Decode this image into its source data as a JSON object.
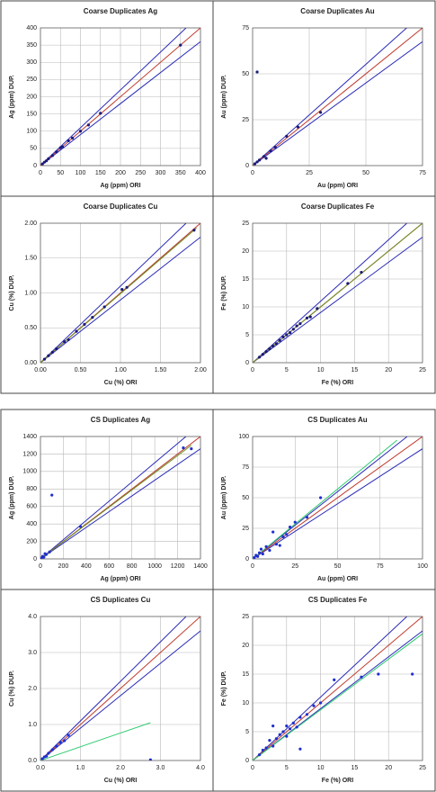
{
  "chart_data": [
    {
      "type": "scatter",
      "title": "Coarse Duplicates Ag",
      "xlabel": "Ag (ppm) ORI",
      "ylabel": "Ag (ppm) DUP.",
      "grid": true,
      "xlim": [
        0,
        400
      ],
      "ylim": [
        0,
        400
      ],
      "xticks": [
        0,
        50,
        100,
        150,
        200,
        250,
        300,
        350,
        400
      ],
      "yticks": [
        0,
        50,
        100,
        150,
        200,
        250,
        300,
        350,
        400
      ],
      "series": [
        {
          "mode": "line",
          "color": "#2a2ab8",
          "x": [
            0,
            364
          ],
          "values": [
            0,
            400
          ]
        },
        {
          "mode": "line",
          "color": "#2a2ab8",
          "x": [
            0,
            400
          ],
          "values": [
            0,
            360
          ]
        },
        {
          "mode": "line",
          "color": "#c0392b",
          "x": [
            0,
            400
          ],
          "values": [
            0,
            400
          ]
        },
        {
          "mode": "markers",
          "color": "#1a1a7a",
          "x": [
            5,
            10,
            15,
            20,
            30,
            40,
            50,
            55,
            70,
            80,
            100,
            120,
            150,
            350
          ],
          "values": [
            5,
            10,
            14,
            20,
            29,
            40,
            52,
            55,
            72,
            80,
            100,
            118,
            152,
            350
          ]
        }
      ]
    },
    {
      "type": "scatter",
      "title": "Coarse Duplicates Au",
      "xlabel": "Au (ppm) ORI",
      "ylabel": "Au (ppm) DUP.",
      "grid": true,
      "xlim": [
        0,
        75
      ],
      "ylim": [
        0,
        75
      ],
      "xticks": [
        0,
        25,
        50,
        75
      ],
      "yticks": [
        0,
        25,
        50,
        75
      ],
      "series": [
        {
          "mode": "line",
          "color": "#2a2ab8",
          "x": [
            0,
            68
          ],
          "values": [
            0,
            75
          ]
        },
        {
          "mode": "line",
          "color": "#2a2ab8",
          "x": [
            0,
            75
          ],
          "values": [
            0,
            67.5
          ]
        },
        {
          "mode": "line",
          "color": "#c0392b",
          "x": [
            0,
            75
          ],
          "values": [
            0,
            75
          ]
        },
        {
          "mode": "markers",
          "color": "#1a1a7a",
          "x": [
            1,
            2,
            2,
            3,
            5,
            6,
            8,
            10,
            15,
            20,
            30
          ],
          "values": [
            1,
            2,
            51,
            3,
            5,
            4,
            8,
            10,
            16,
            21,
            29
          ]
        }
      ]
    },
    {
      "type": "scatter",
      "title": "Coarse Duplicates Cu",
      "xlabel": "Cu (%) ORI",
      "ylabel": "Cu (%) DUP.",
      "grid": true,
      "xlim": [
        0,
        2
      ],
      "ylim": [
        0,
        2
      ],
      "xticks": [
        {
          "value": 0,
          "label": "0.00"
        },
        {
          "value": 0.5,
          "label": "0.50"
        },
        {
          "value": 1,
          "label": "1.00"
        },
        {
          "value": 1.5,
          "label": "1.50"
        },
        {
          "value": 2,
          "label": "2.00"
        }
      ],
      "yticks": [
        {
          "value": 0,
          "label": "0.00"
        },
        {
          "value": 0.5,
          "label": "0.50"
        },
        {
          "value": 1,
          "label": "1.00"
        },
        {
          "value": 1.5,
          "label": "1.50"
        },
        {
          "value": 2,
          "label": "2.00"
        }
      ],
      "series": [
        {
          "mode": "line",
          "color": "#2a2ab8",
          "x": [
            0,
            1.82
          ],
          "values": [
            0,
            2
          ]
        },
        {
          "mode": "line",
          "color": "#2a2ab8",
          "x": [
            0,
            2
          ],
          "values": [
            0,
            1.8
          ]
        },
        {
          "mode": "line",
          "color": "#c0392b",
          "x": [
            0,
            2
          ],
          "values": [
            0,
            2
          ]
        },
        {
          "mode": "line",
          "color": "#6b8e23",
          "x": [
            0,
            1.95
          ],
          "values": [
            0,
            1.93
          ]
        },
        {
          "mode": "markers",
          "color": "#1a1a7a",
          "x": [
            0.05,
            0.1,
            0.15,
            0.2,
            0.3,
            0.35,
            0.45,
            0.55,
            0.65,
            0.8,
            1.02,
            1.08,
            1.92
          ],
          "values": [
            0.05,
            0.1,
            0.15,
            0.2,
            0.3,
            0.33,
            0.45,
            0.55,
            0.65,
            0.8,
            1.05,
            1.08,
            1.9
          ]
        }
      ]
    },
    {
      "type": "scatter",
      "title": "Coarse Duplicates Fe",
      "xlabel": "Fe (%) ORI",
      "ylabel": "Fe (%) DUP.",
      "grid": true,
      "xlim": [
        0,
        25
      ],
      "ylim": [
        0,
        25
      ],
      "xticks": [
        0,
        5,
        10,
        15,
        20,
        25
      ],
      "yticks": [
        0,
        5,
        10,
        15,
        20,
        25
      ],
      "series": [
        {
          "mode": "line",
          "color": "#2a2ab8",
          "x": [
            0,
            22.7
          ],
          "values": [
            0,
            25
          ]
        },
        {
          "mode": "line",
          "color": "#2a2ab8",
          "x": [
            0,
            25
          ],
          "values": [
            0,
            22.5
          ]
        },
        {
          "mode": "line",
          "color": "#c0392b",
          "x": [
            0,
            25
          ],
          "values": [
            0,
            25
          ]
        },
        {
          "mode": "line",
          "color": "#6b8e23",
          "x": [
            0,
            25
          ],
          "values": [
            0,
            25
          ]
        },
        {
          "mode": "markers",
          "color": "#1a1a7a",
          "x": [
            1,
            1.5,
            2,
            2.5,
            3,
            3.5,
            4,
            4.5,
            5,
            5.5,
            6,
            6.5,
            7,
            8,
            8.5,
            9.5,
            14,
            16
          ],
          "values": [
            1,
            1.5,
            2,
            2.5,
            3,
            3.4,
            4,
            4.6,
            5,
            5.4,
            6,
            6.6,
            7,
            8,
            8.2,
            9.7,
            14.2,
            16.2
          ]
        }
      ]
    },
    {
      "type": "scatter",
      "title": "CS Duplicates Ag",
      "xlabel": "Ag (ppm) ORI",
      "ylabel": "Ag (ppm) DUP.",
      "grid": true,
      "xlim": [
        0,
        1400
      ],
      "ylim": [
        0,
        1400
      ],
      "xticks": [
        0,
        200,
        400,
        600,
        800,
        1000,
        1200,
        1400
      ],
      "yticks": [
        0,
        200,
        400,
        600,
        800,
        1000,
        1200,
        1400
      ],
      "series": [
        {
          "mode": "line",
          "color": "#2a2ab8",
          "x": [
            0,
            1273
          ],
          "values": [
            0,
            1400
          ]
        },
        {
          "mode": "line",
          "color": "#2a2ab8",
          "x": [
            0,
            1400
          ],
          "values": [
            0,
            1260
          ]
        },
        {
          "mode": "line",
          "color": "#c0392b",
          "x": [
            0,
            1400
          ],
          "values": [
            0,
            1400
          ]
        },
        {
          "mode": "line",
          "color": "#6b8e23",
          "x": [
            0,
            1320
          ],
          "values": [
            0,
            1300
          ]
        },
        {
          "mode": "markers",
          "color": "#1f2fd0",
          "x": [
            10,
            20,
            30,
            50,
            40,
            80,
            100,
            350,
            1250,
            1320
          ],
          "values": [
            10,
            30,
            20,
            50,
            60,
            80,
            730,
            370,
            1270,
            1260
          ]
        }
      ]
    },
    {
      "type": "scatter",
      "title": "CS Duplicates Au",
      "xlabel": "Au (ppm) ORI",
      "ylabel": "Au (ppm) DUP.",
      "grid": true,
      "xlim": [
        0,
        100
      ],
      "ylim": [
        0,
        100
      ],
      "xticks": [
        0,
        25,
        50,
        75,
        100
      ],
      "yticks": [
        0,
        25,
        50,
        75,
        100
      ],
      "series": [
        {
          "mode": "line",
          "color": "#2a2ab8",
          "x": [
            0,
            91
          ],
          "values": [
            0,
            100
          ]
        },
        {
          "mode": "line",
          "color": "#2a2ab8",
          "x": [
            0,
            100
          ],
          "values": [
            0,
            90
          ]
        },
        {
          "mode": "line",
          "color": "#c0392b",
          "x": [
            0,
            100
          ],
          "values": [
            0,
            100
          ]
        },
        {
          "mode": "line",
          "color": "#2ecc71",
          "x": [
            0,
            85
          ],
          "values": [
            0,
            97
          ]
        },
        {
          "mode": "markers",
          "color": "#1f2fd0",
          "x": [
            1,
            2,
            3,
            4,
            5,
            6,
            8,
            10,
            12,
            14,
            16,
            18,
            20,
            22,
            25,
            32,
            40
          ],
          "values": [
            1,
            3,
            2,
            5,
            8,
            4,
            10,
            7,
            22,
            12,
            11,
            18,
            20,
            26,
            30,
            34,
            50
          ]
        }
      ]
    },
    {
      "type": "scatter",
      "title": "CS Duplicates Cu",
      "xlabel": "Cu (%) ORI",
      "ylabel": "Cu (%) DUP.",
      "grid": true,
      "xlim": [
        0,
        4
      ],
      "ylim": [
        0,
        4
      ],
      "xticks": [
        {
          "value": 0,
          "label": "0.0"
        },
        {
          "value": 1,
          "label": "1.0"
        },
        {
          "value": 2,
          "label": "2.0"
        },
        {
          "value": 3,
          "label": "3.0"
        },
        {
          "value": 4,
          "label": "4.0"
        }
      ],
      "yticks": [
        {
          "value": 0,
          "label": "0.0"
        },
        {
          "value": 1,
          "label": "1.0"
        },
        {
          "value": 2,
          "label": "2.0"
        },
        {
          "value": 3,
          "label": "3.0"
        },
        {
          "value": 4,
          "label": "4.0"
        }
      ],
      "series": [
        {
          "mode": "line",
          "color": "#2a2ab8",
          "x": [
            0,
            3.64
          ],
          "values": [
            0,
            4
          ]
        },
        {
          "mode": "line",
          "color": "#2a2ab8",
          "x": [
            0,
            4
          ],
          "values": [
            0,
            3.6
          ]
        },
        {
          "mode": "line",
          "color": "#c0392b",
          "x": [
            0,
            4
          ],
          "values": [
            0,
            4
          ]
        },
        {
          "mode": "line",
          "color": "#2ecc71",
          "x": [
            0,
            2.75
          ],
          "values": [
            0,
            1.05
          ]
        },
        {
          "mode": "markers",
          "color": "#1f2fd0",
          "x": [
            0.05,
            0.1,
            0.15,
            0.2,
            0.3,
            0.4,
            0.5,
            0.6,
            0.7,
            2.75
          ],
          "values": [
            0.05,
            0.1,
            0.12,
            0.2,
            0.3,
            0.4,
            0.5,
            0.55,
            0.7,
            0.02
          ]
        }
      ]
    },
    {
      "type": "scatter",
      "title": "CS Duplicates Fe",
      "xlabel": "Fe (%) ORI",
      "ylabel": "Fe (%) DUP.",
      "grid": true,
      "xlim": [
        0,
        25
      ],
      "ylim": [
        0,
        25
      ],
      "xticks": [
        0,
        5,
        10,
        15,
        20,
        25
      ],
      "yticks": [
        0,
        5,
        10,
        15,
        20,
        25
      ],
      "series": [
        {
          "mode": "line",
          "color": "#2a2ab8",
          "x": [
            0,
            22.7
          ],
          "values": [
            0,
            25
          ]
        },
        {
          "mode": "line",
          "color": "#2a2ab8",
          "x": [
            0,
            25
          ],
          "values": [
            0,
            22.5
          ]
        },
        {
          "mode": "line",
          "color": "#c0392b",
          "x": [
            0,
            25
          ],
          "values": [
            0,
            25
          ]
        },
        {
          "mode": "line",
          "color": "#2ecc71",
          "x": [
            0,
            25
          ],
          "values": [
            0,
            22
          ]
        },
        {
          "mode": "markers",
          "color": "#1f2fd0",
          "x": [
            1,
            1.5,
            2,
            2.5,
            3,
            3,
            3.5,
            4,
            4.5,
            5,
            5,
            5.5,
            6,
            6.5,
            7,
            7,
            8,
            9,
            10,
            12,
            16,
            18.5,
            23.5
          ],
          "values": [
            1,
            1.8,
            2.2,
            3.5,
            2.5,
            6,
            3.8,
            4.5,
            5,
            4.2,
            6,
            5.5,
            6.5,
            5.8,
            7.5,
            2,
            8,
            9.5,
            10,
            14,
            14.5,
            15,
            15
          ]
        }
      ]
    }
  ]
}
